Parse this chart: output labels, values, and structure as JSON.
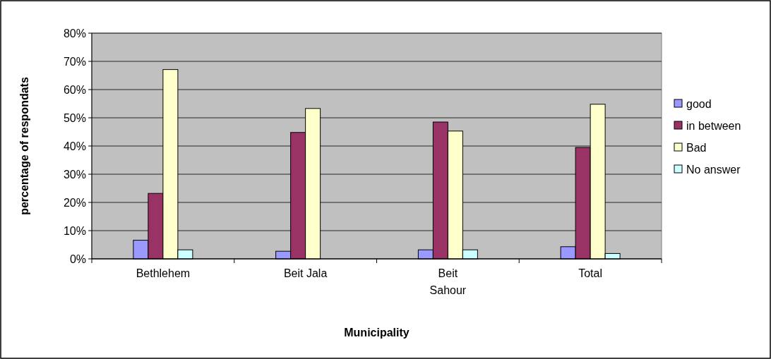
{
  "chart_data": {
    "type": "bar",
    "xlabel": "Municipality",
    "ylabel": "percentage of respondats",
    "categories": [
      "Bethlehem",
      "Beit Jala",
      "Beit Sahour",
      "Total"
    ],
    "series": [
      {
        "name": "good",
        "color": "#9999ff",
        "values": [
          6.6,
          2.7,
          3.2,
          4.3
        ]
      },
      {
        "name": "in between",
        "color": "#993366",
        "values": [
          23.2,
          44.8,
          48.5,
          39.5
        ]
      },
      {
        "name": "Bad",
        "color": "#ffffcc",
        "values": [
          67.1,
          53.3,
          45.3,
          54.8
        ]
      },
      {
        "name": "No answer",
        "color": "#ccffff",
        "values": [
          3.2,
          0,
          3.2,
          1.9
        ]
      }
    ],
    "ylim": [
      0,
      80
    ],
    "yticks": [
      {
        "value": 0,
        "label": "0%"
      },
      {
        "value": 10,
        "label": "10%"
      },
      {
        "value": 20,
        "label": "20%"
      },
      {
        "value": 30,
        "label": "30%"
      },
      {
        "value": 40,
        "label": "40%"
      },
      {
        "value": 50,
        "label": "50%"
      },
      {
        "value": 60,
        "label": "60%"
      },
      {
        "value": 70,
        "label": "70%"
      },
      {
        "value": 80,
        "label": "80%"
      }
    ],
    "grid": "y",
    "legend": "right"
  }
}
